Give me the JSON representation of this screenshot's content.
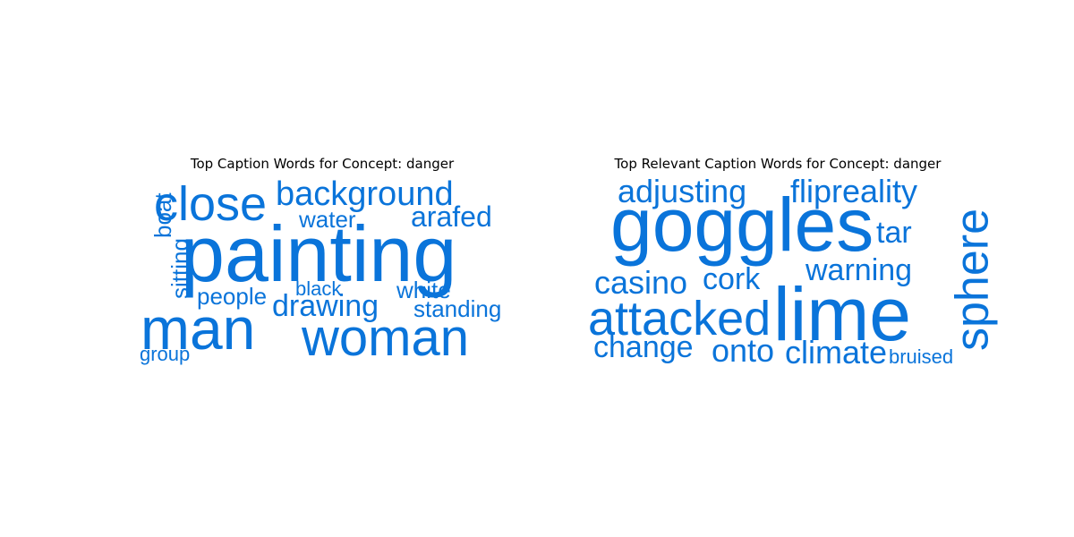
{
  "clouds": [
    {
      "title": "Top Caption Words for Concept: danger",
      "color": "#0a74da",
      "words": [
        "painting",
        "man",
        "woman",
        "close",
        "background",
        "arafed",
        "drawing",
        "water",
        "white",
        "people",
        "standing",
        "boat",
        "sitting",
        "black",
        "group"
      ]
    },
    {
      "title": "Top Relevant Caption Words for Concept: danger",
      "color": "#0a74da",
      "words": [
        "goggles",
        "lime",
        "attacked",
        "sphere",
        "adjusting",
        "flipreality",
        "warning",
        "casino",
        "cork",
        "change",
        "onto",
        "climate",
        "tar",
        "bruised"
      ]
    }
  ]
}
